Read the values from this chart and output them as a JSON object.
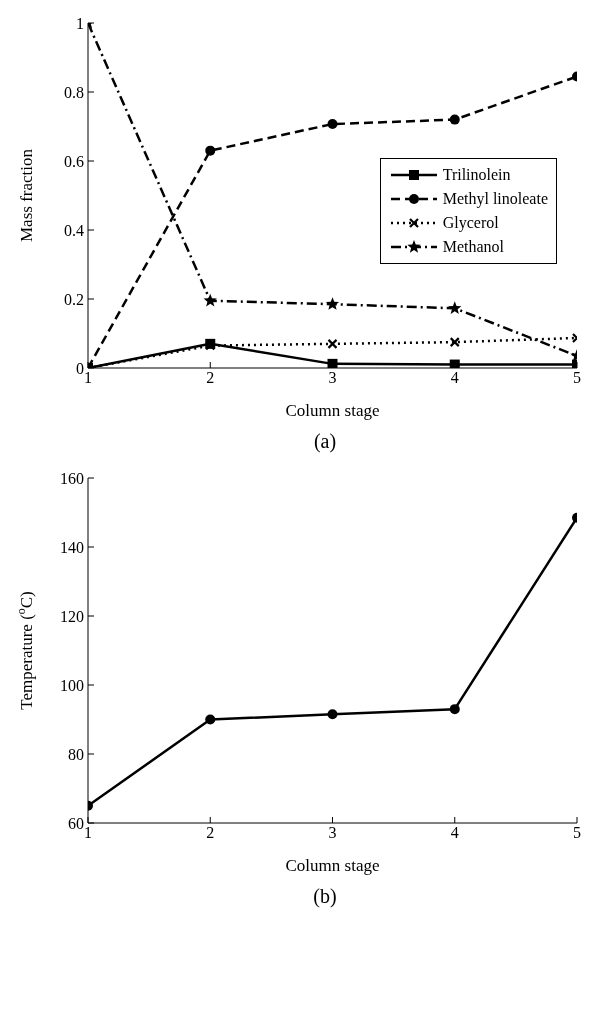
{
  "chart_data": [
    {
      "type": "line",
      "xlabel": "Column stage",
      "ylabel": "Mass fraction",
      "x": [
        1,
        2,
        3,
        4,
        5
      ],
      "xlim": [
        1,
        5
      ],
      "xticks": [
        1,
        2,
        3,
        4,
        5
      ],
      "ylim": [
        0,
        1
      ],
      "yticks": [
        0,
        0.2,
        0.4,
        0.6,
        0.8,
        1
      ],
      "grid": false,
      "legend": "right",
      "annotations": [
        "(a)"
      ],
      "series": [
        {
          "name": "Trilinolein",
          "color": "#000000",
          "marker": "square",
          "line_style": "solid",
          "values": [
            0,
            0.07,
            0.012,
            0.01,
            0.01
          ]
        },
        {
          "name": "Methyl linoleate",
          "color": "#000000",
          "marker": "circle",
          "line_style": "dashed",
          "values": [
            0,
            0.63,
            0.707,
            0.72,
            0.845
          ]
        },
        {
          "name": "Glycerol",
          "color": "#000000",
          "marker": "cross",
          "line_style": "dotted",
          "values": [
            0,
            0.065,
            0.07,
            0.075,
            0.087
          ]
        },
        {
          "name": "Methanol",
          "color": "#000000",
          "marker": "star",
          "line_style": "dashdot",
          "values": [
            1,
            0.195,
            0.185,
            0.173,
            0.035
          ]
        }
      ]
    },
    {
      "type": "line",
      "xlabel": "Column stage",
      "ylabel": "Temperature  ($^{o}$C)",
      "x": [
        1,
        2,
        3,
        4,
        5
      ],
      "xlim": [
        1,
        5
      ],
      "xticks": [
        1,
        2,
        3,
        4,
        5
      ],
      "ylim": [
        60,
        160
      ],
      "yticks": [
        60,
        80,
        100,
        120,
        140,
        160
      ],
      "grid": false,
      "legend": false,
      "marker": "circle",
      "line_style": "solid",
      "annotations": [
        "(b)"
      ],
      "series": [
        {
          "color": "#000000",
          "values": [
            65,
            90,
            91.5,
            93,
            148.5
          ]
        }
      ]
    }
  ]
}
